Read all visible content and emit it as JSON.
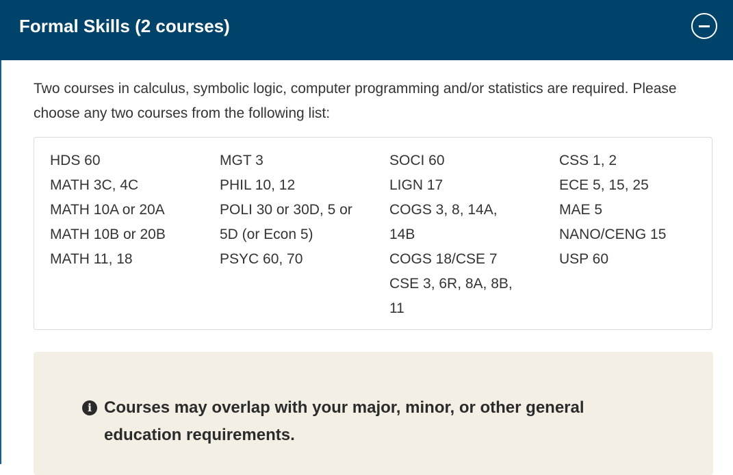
{
  "section": {
    "title": "Formal Skills (2 courses)",
    "toggle_icon": "minus-circle-icon",
    "intro": "Two courses in calculus, symbolic logic, computer programming and/or statistics are required. Please choose any two courses from the following list:",
    "columns": [
      [
        "HDS 60",
        "MATH 3C, 4C",
        "MATH 10A or 20A",
        "MATH 10B or 20B",
        "MATH 11, 18"
      ],
      [
        "MGT 3",
        "PHIL 10, 12",
        "POLI 30 or 30D, 5 or 5D (or Econ 5)",
        "PSYC 60, 70"
      ],
      [
        "SOCI 60",
        "LIGN 17",
        "COGS 3, 8, 14A, 14B",
        "COGS 18/CSE 7",
        "CSE 3, 6R, 8A, 8B, 11"
      ],
      [
        "CSS 1, 2",
        "ECE 5, 15, 25",
        "MAE 5",
        "NANO/CENG 15",
        "USP 60"
      ]
    ],
    "note": {
      "icon": "info-circle-icon",
      "text": "Courses may overlap with your major, minor, or other general education requirements."
    }
  },
  "colors": {
    "header": "#00436a",
    "callout": "#f3efe5"
  }
}
